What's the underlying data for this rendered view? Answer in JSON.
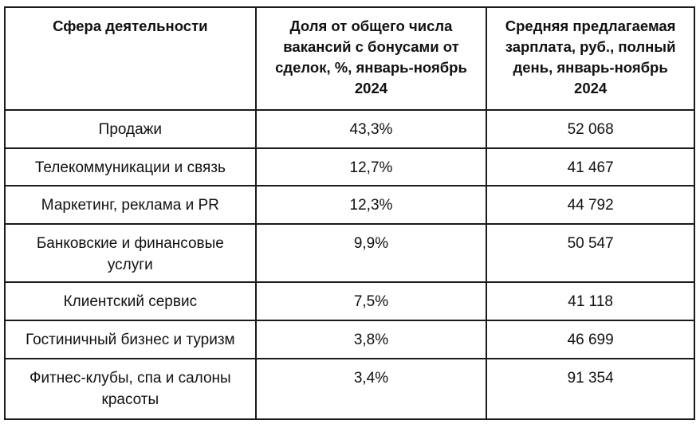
{
  "table": {
    "headers": [
      "Сфера деятельности",
      "Доля от общего числа вакансий с бонусами от сделок, %, январь-ноябрь 2024",
      "Средняя предлагаемая зарплата, руб., полный день, январь-ноябрь 2024"
    ],
    "rows": [
      {
        "sector": "Продажи",
        "share": "43,3%",
        "salary": "52 068"
      },
      {
        "sector": "Телекоммуникации и связь",
        "share": "12,7%",
        "salary": "41 467"
      },
      {
        "sector": "Маркетинг, реклама и PR",
        "share": "12,3%",
        "salary": "44 792"
      },
      {
        "sector": "Банковские и финансовые услуги",
        "share": "9,9%",
        "salary": "50 547"
      },
      {
        "sector": "Клиентский сервис",
        "share": "7,5%",
        "salary": "41 118"
      },
      {
        "sector": "Гостиничный бизнес и туризм",
        "share": "3,8%",
        "salary": "46 699"
      },
      {
        "sector": "Фитнес-клубы, спа и салоны красоты",
        "share": "3,4%",
        "salary": "91 354"
      }
    ]
  }
}
